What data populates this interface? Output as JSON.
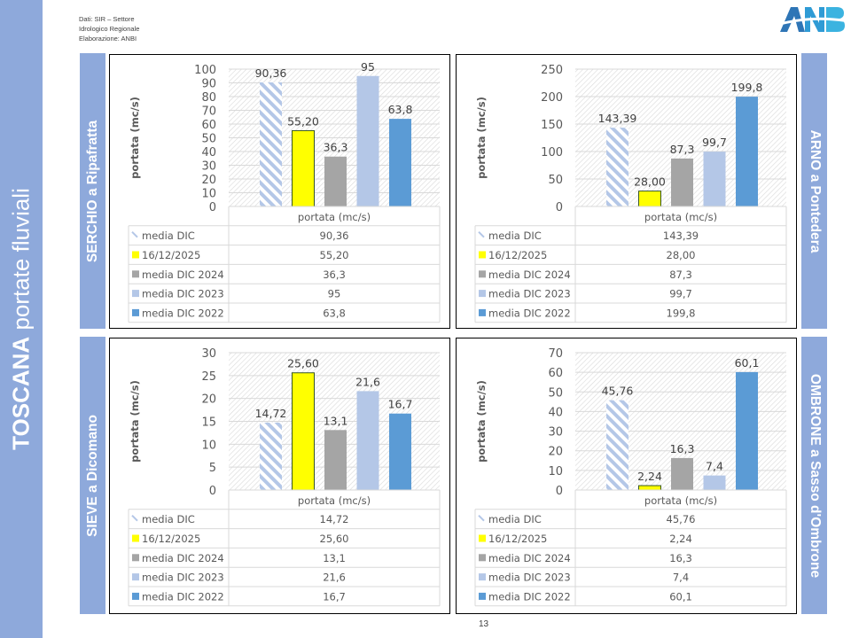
{
  "sidebar": {
    "title_bold": "TOSCANA",
    "title_rest": " portate fluviali"
  },
  "source": {
    "line1": "Dati: SIR – Settore",
    "line2": "Idrologico Regionale",
    "line3": "Elaborazione: ANBI"
  },
  "logo": {
    "text": "ANBI"
  },
  "page_number": "13",
  "colors": {
    "band": "#8EA9DB",
    "media_dic": "#B4C7E7",
    "current": "#FFFF00",
    "y2024": "#A5A5A5",
    "y2023": "#B4C7E7",
    "y2022": "#5B9BD5"
  },
  "chart_data": [
    {
      "type": "bar",
      "station": "SERCHIO a Ripafratta",
      "title": "",
      "xlabel": "portata (mc/s)",
      "ylabel": "portata (mc/s)",
      "ylim": [
        0,
        100
      ],
      "yticks": [
        0,
        10,
        20,
        30,
        40,
        50,
        60,
        70,
        80,
        90,
        100
      ],
      "categories": [
        "portata (mc/s)"
      ],
      "series": [
        {
          "name": "media DIC",
          "values": [
            90.36
          ],
          "label": "90,36"
        },
        {
          "name": "16/12/2025",
          "values": [
            55.2
          ],
          "label": "55,20"
        },
        {
          "name": "media DIC 2024",
          "values": [
            36.3
          ],
          "label": "36,3"
        },
        {
          "name": "media DIC 2023",
          "values": [
            95
          ],
          "label": "95"
        },
        {
          "name": "media DIC 2022",
          "values": [
            63.8
          ],
          "label": "63,8"
        }
      ],
      "legend": "data-table-bottom",
      "grid": true
    },
    {
      "type": "bar",
      "station": "ARNO a Pontedera",
      "title": "",
      "xlabel": "portata (mc/s)",
      "ylabel": "portata (mc/s)",
      "ylim": [
        0,
        250
      ],
      "yticks": [
        0,
        50,
        100,
        150,
        200,
        250
      ],
      "categories": [
        "portata (mc/s)"
      ],
      "series": [
        {
          "name": "media DIC",
          "values": [
            143.39
          ],
          "label": "143,39"
        },
        {
          "name": "16/12/2025",
          "values": [
            28.0
          ],
          "label": "28,00"
        },
        {
          "name": "media DIC 2024",
          "values": [
            87.3
          ],
          "label": "87,3"
        },
        {
          "name": "media DIC 2023",
          "values": [
            99.7
          ],
          "label": "99,7"
        },
        {
          "name": "media DIC 2022",
          "values": [
            199.8
          ],
          "label": "199,8"
        }
      ],
      "legend": "data-table-bottom",
      "grid": true
    },
    {
      "type": "bar",
      "station": "SIEVE a Dicomano",
      "title": "",
      "xlabel": "portata (mc/s)",
      "ylabel": "portata (mc/s)",
      "ylim": [
        0,
        30
      ],
      "yticks": [
        0,
        5,
        10,
        15,
        20,
        25,
        30
      ],
      "categories": [
        "portata (mc/s)"
      ],
      "series": [
        {
          "name": "media DIC",
          "values": [
            14.72
          ],
          "label": "14,72"
        },
        {
          "name": "16/12/2025",
          "values": [
            25.6
          ],
          "label": "25,60"
        },
        {
          "name": "media DIC 2024",
          "values": [
            13.1
          ],
          "label": "13,1"
        },
        {
          "name": "media DIC 2023",
          "values": [
            21.6
          ],
          "label": "21,6"
        },
        {
          "name": "media DIC 2022",
          "values": [
            16.7
          ],
          "label": "16,7"
        }
      ],
      "legend": "data-table-bottom",
      "grid": true
    },
    {
      "type": "bar",
      "station": "OMBRONE a Sasso d'Ombrone",
      "title": "",
      "xlabel": "portata (mc/s)",
      "ylabel": "portata (mc/s)",
      "ylim": [
        0,
        70
      ],
      "yticks": [
        0,
        10,
        20,
        30,
        40,
        50,
        60,
        70
      ],
      "categories": [
        "portata (mc/s)"
      ],
      "series": [
        {
          "name": "media DIC",
          "values": [
            45.76
          ],
          "label": "45,76"
        },
        {
          "name": "16/12/2025",
          "values": [
            2.24
          ],
          "label": "2,24"
        },
        {
          "name": "media DIC 2024",
          "values": [
            16.3
          ],
          "label": "16,3"
        },
        {
          "name": "media DIC 2023",
          "values": [
            7.4
          ],
          "label": "7,4"
        },
        {
          "name": "media DIC 2022",
          "values": [
            60.1
          ],
          "label": "60,1"
        }
      ],
      "legend": "data-table-bottom",
      "grid": true
    }
  ]
}
